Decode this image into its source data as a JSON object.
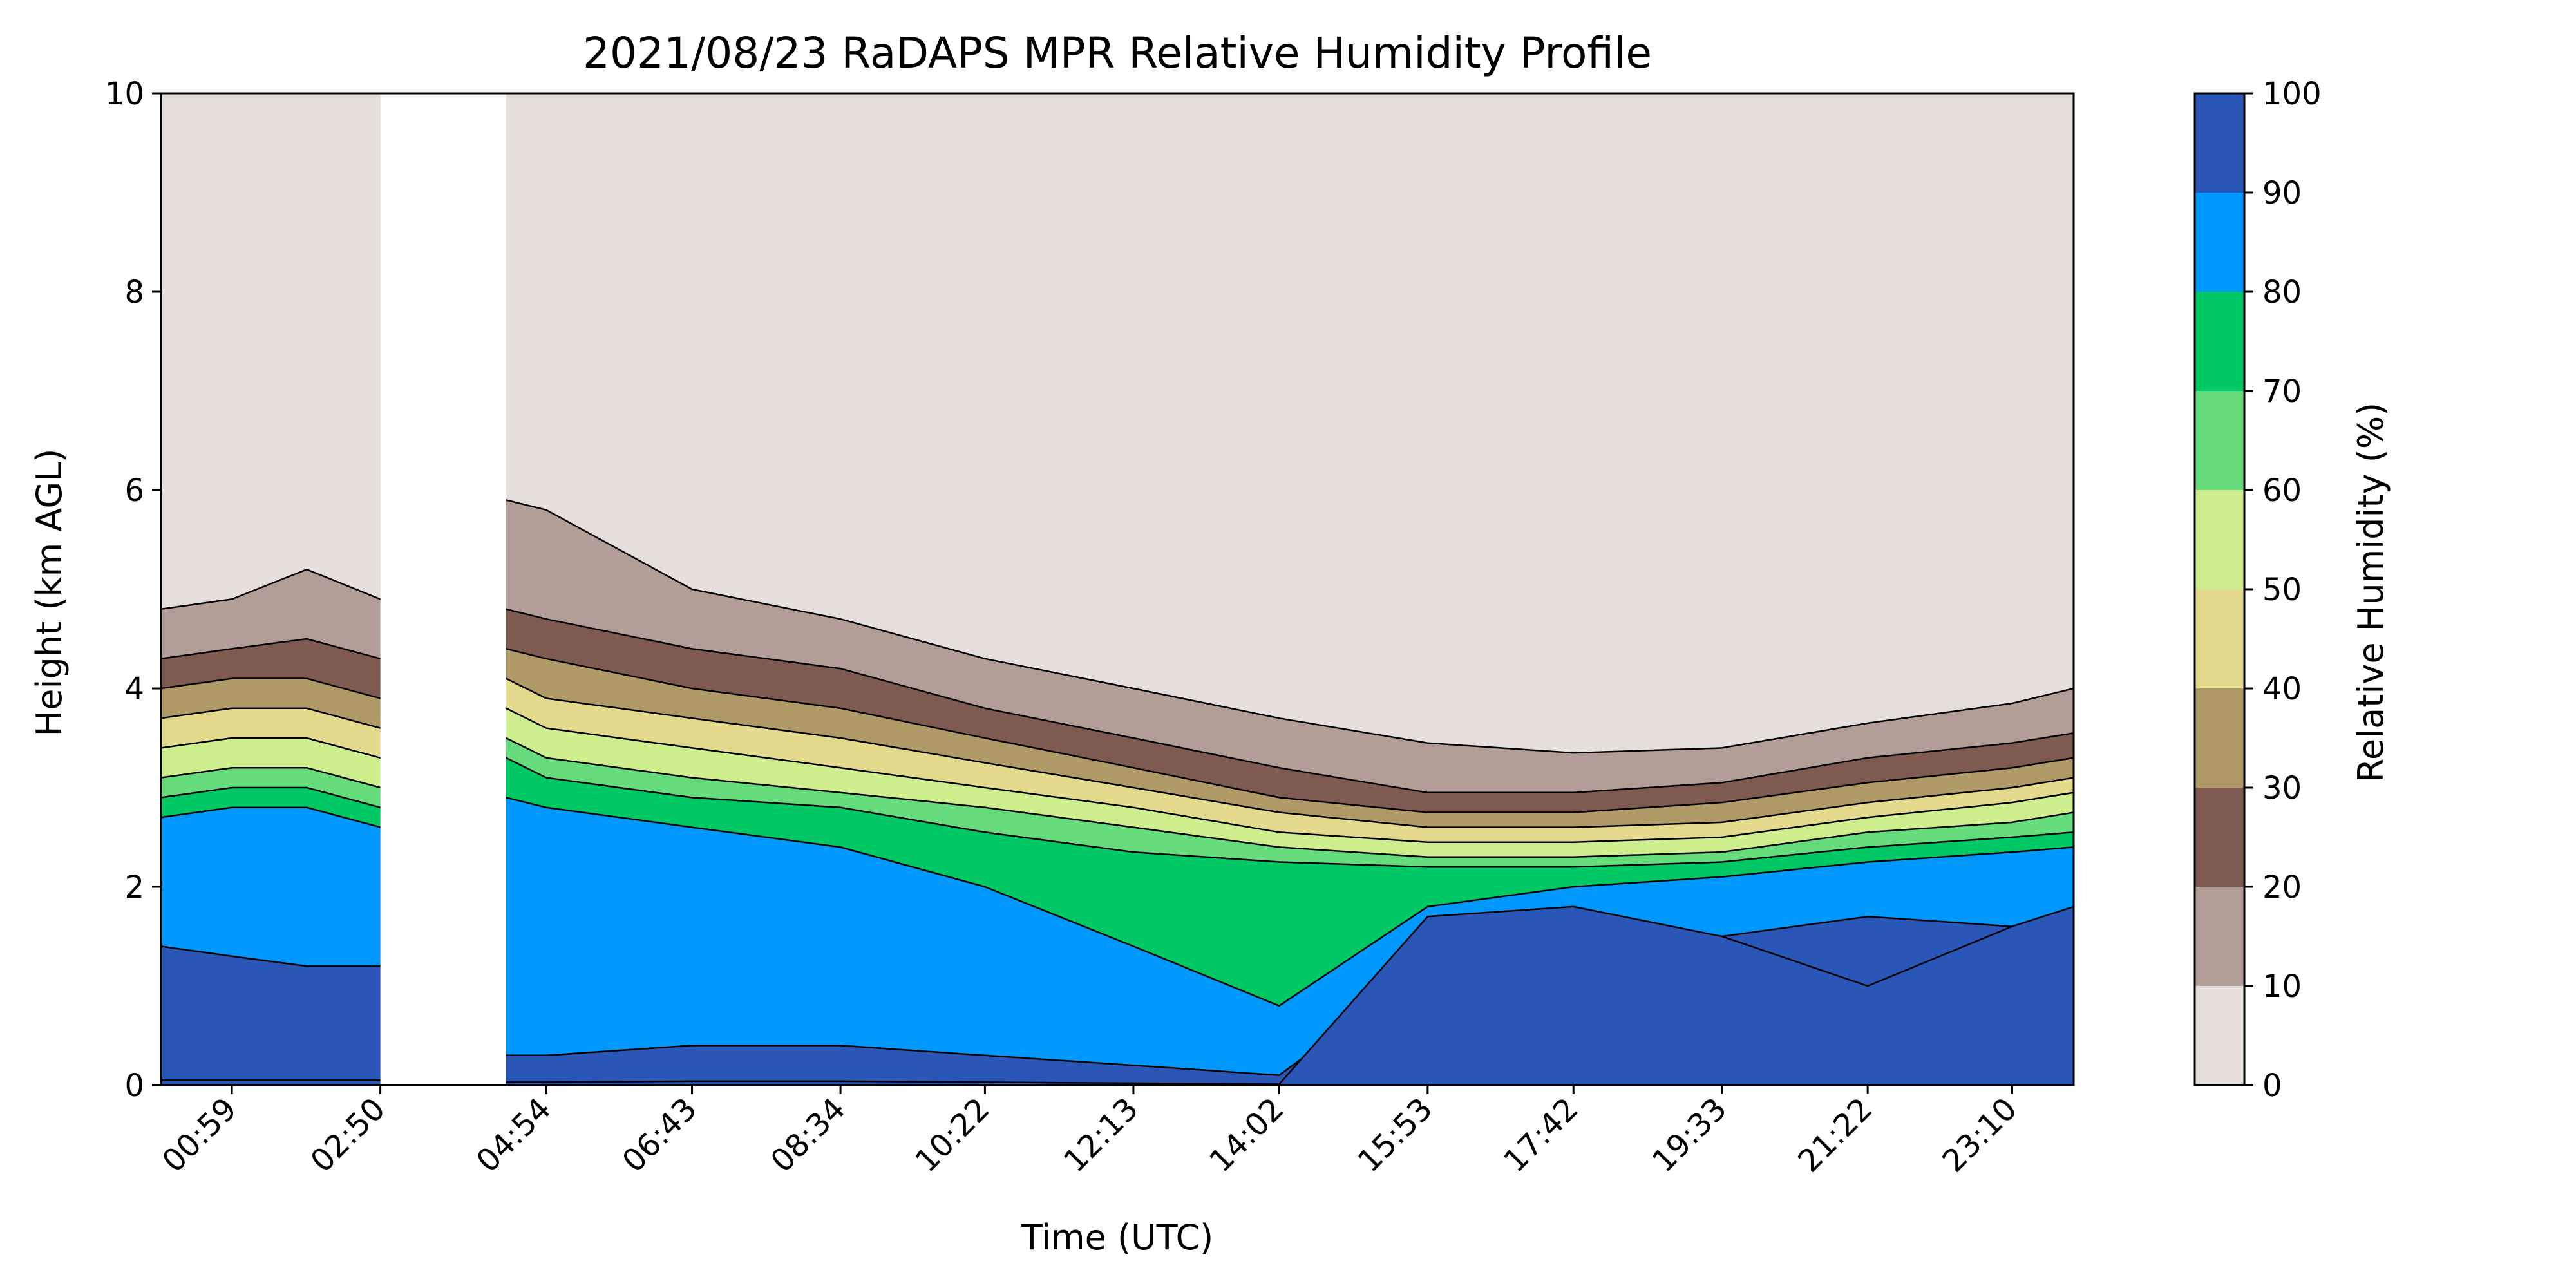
{
  "chart_data": {
    "type": "heatmap",
    "title": "2021/08/23 RaDAPS MPR Relative Humidity Profile",
    "xlabel": "Time (UTC)",
    "ylabel": "Height (km AGL)",
    "x_ticks": [
      "00:59",
      "02:50",
      "04:54",
      "06:43",
      "08:34",
      "10:22",
      "12:13",
      "14:02",
      "15:53",
      "17:42",
      "19:33",
      "21:22",
      "23:10"
    ],
    "xlim": [
      "00:06",
      "23:56"
    ],
    "y_ticks": [
      0,
      2,
      4,
      6,
      8,
      10
    ],
    "ylim": [
      0,
      10
    ],
    "data_gap": [
      "02:50",
      "04:24"
    ],
    "colorbar": {
      "label": "Relative Humidity (%)",
      "ticks": [
        0,
        10,
        20,
        30,
        40,
        50,
        60,
        70,
        80,
        90,
        100
      ],
      "levels": [
        {
          "min": 0,
          "max": 10,
          "color": "#e6dfdd"
        },
        {
          "min": 10,
          "max": 20,
          "color": "#b39e97"
        },
        {
          "min": 20,
          "max": 30,
          "color": "#7f5a50"
        },
        {
          "min": 30,
          "max": 40,
          "color": "#b09a68"
        },
        {
          "min": 40,
          "max": 50,
          "color": "#e3da8d"
        },
        {
          "min": 50,
          "max": 60,
          "color": "#cfee8d"
        },
        {
          "min": 60,
          "max": 70,
          "color": "#66dc7c"
        },
        {
          "min": 70,
          "max": 80,
          "color": "#00c864"
        },
        {
          "min": 80,
          "max": 90,
          "color": "#0098ff"
        },
        {
          "min": 90,
          "max": 100,
          "color": "#2a56b8"
        }
      ]
    },
    "profile_times": [
      "00:06",
      "00:59",
      "01:55",
      "02:50",
      "04:24",
      "04:54",
      "06:43",
      "08:34",
      "10:22",
      "12:13",
      "14:02",
      "15:53",
      "17:42",
      "19:33",
      "21:22",
      "23:10",
      "23:56"
    ],
    "contour_tops_km": [
      {
        "rh": 100,
        "heights": [
          10,
          10,
          10,
          10,
          10,
          10,
          10,
          10,
          10,
          10,
          10,
          10,
          10,
          10,
          10,
          10,
          10
        ]
      },
      {
        "rh": 10,
        "heights": [
          4.8,
          4.9,
          5.2,
          4.9,
          5.9,
          5.8,
          5.0,
          4.7,
          4.3,
          4.0,
          3.7,
          3.45,
          3.35,
          3.4,
          3.65,
          3.85,
          4.0
        ]
      },
      {
        "rh": 20,
        "heights": [
          4.3,
          4.4,
          4.5,
          4.3,
          4.8,
          4.7,
          4.4,
          4.2,
          3.8,
          3.5,
          3.2,
          2.95,
          2.95,
          3.05,
          3.3,
          3.45,
          3.55
        ]
      },
      {
        "rh": 30,
        "heights": [
          4.0,
          4.1,
          4.1,
          3.9,
          4.4,
          4.3,
          4.0,
          3.8,
          3.5,
          3.2,
          2.9,
          2.75,
          2.75,
          2.85,
          3.05,
          3.2,
          3.3
        ]
      },
      {
        "rh": 40,
        "heights": [
          3.7,
          3.8,
          3.8,
          3.6,
          4.1,
          3.9,
          3.7,
          3.5,
          3.25,
          3.0,
          2.75,
          2.6,
          2.6,
          2.65,
          2.85,
          3.0,
          3.1
        ]
      },
      {
        "rh": 50,
        "heights": [
          3.4,
          3.5,
          3.5,
          3.3,
          3.8,
          3.6,
          3.4,
          3.2,
          3.0,
          2.8,
          2.55,
          2.45,
          2.45,
          2.5,
          2.7,
          2.85,
          2.95
        ]
      },
      {
        "rh": 60,
        "heights": [
          3.1,
          3.2,
          3.2,
          3.0,
          3.5,
          3.3,
          3.1,
          2.95,
          2.8,
          2.6,
          2.4,
          2.3,
          2.3,
          2.35,
          2.55,
          2.65,
          2.75
        ]
      },
      {
        "rh": 70,
        "heights": [
          2.9,
          3.0,
          3.0,
          2.8,
          3.3,
          3.1,
          2.9,
          2.8,
          2.55,
          2.35,
          2.25,
          2.2,
          2.2,
          2.25,
          2.4,
          2.5,
          2.55
        ]
      },
      {
        "rh": 80,
        "heights": [
          2.7,
          2.8,
          2.8,
          2.6,
          2.9,
          2.8,
          2.6,
          2.4,
          2.0,
          1.4,
          0.8,
          1.8,
          2.0,
          2.1,
          2.25,
          2.35,
          2.4
        ]
      },
      {
        "rh": 90,
        "heights": [
          1.4,
          1.3,
          1.2,
          1.2,
          0.3,
          0.3,
          0.4,
          0.4,
          0.3,
          0.2,
          0.1,
          1.2,
          1.3,
          1.5,
          1.7,
          1.6,
          1.5
        ]
      },
      {
        "rh": 100,
        "heights": [
          0.05,
          0.05,
          0.05,
          0.05,
          0.03,
          0.03,
          0.04,
          0.04,
          0.03,
          0.02,
          0.01,
          1.7,
          1.8,
          1.5,
          1.0,
          1.6,
          1.8
        ]
      }
    ]
  }
}
